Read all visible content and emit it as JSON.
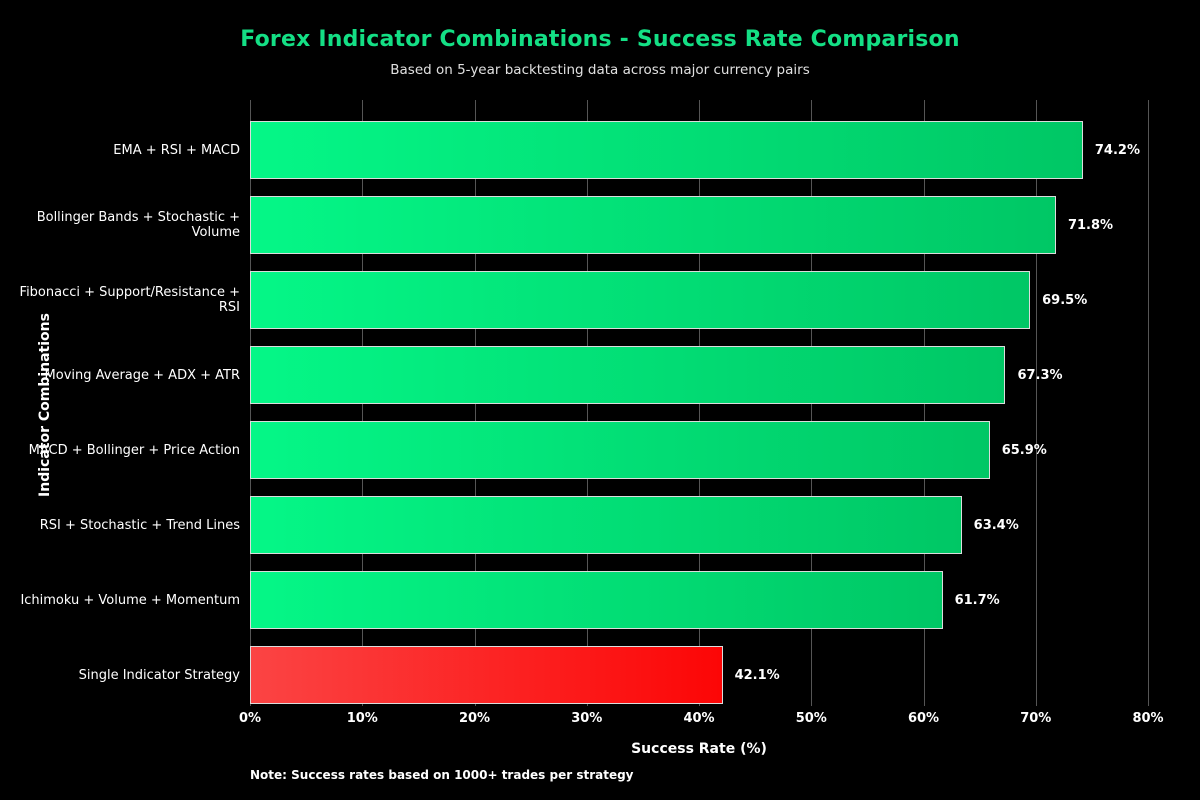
{
  "chart_data": {
    "type": "bar",
    "orientation": "horizontal",
    "title": "Forex Indicator Combinations - Success Rate Comparison",
    "subtitle": "Based on 5-year backtesting data across major currency pairs",
    "xlabel": "Success Rate (%)",
    "ylabel": "Indicator Combinations",
    "note": "Note: Success rates based on 1000+ trades per strategy",
    "categories": [
      "EMA + RSI + MACD",
      "Bollinger Bands + Stochastic + Volume",
      "Fibonacci + Support/Resistance + RSI",
      "Moving Average + ADX + ATR",
      "MACD + Bollinger + Price Action",
      "RSI + Stochastic + Trend Lines",
      "Ichimoku + Volume + Momentum",
      "Single Indicator Strategy"
    ],
    "values": [
      74.2,
      71.8,
      69.5,
      67.3,
      65.9,
      63.4,
      61.7,
      42.1
    ],
    "value_labels": [
      "74.2%",
      "71.8%",
      "69.5%",
      "67.3%",
      "65.9%",
      "63.4%",
      "61.7%",
      "42.1%"
    ],
    "bar_color_keys": [
      "green",
      "green",
      "green",
      "green",
      "green",
      "green",
      "green",
      "red"
    ],
    "x_ticks": [
      "0%",
      "10%",
      "20%",
      "30%",
      "40%",
      "50%",
      "60%",
      "70%",
      "80%"
    ],
    "xlim": [
      0,
      80
    ],
    "grid": true,
    "legend": "none",
    "colors": {
      "background": "#000000",
      "title": "#14DF85",
      "subtitle": "#E0E0E0",
      "text": "#FFFFFF",
      "grid": "#555555",
      "bar_border": "#DCDCDC",
      "green_gradient_start": "#05F787",
      "green_gradient_end": "#00C765",
      "red_gradient_start": "#FB4444",
      "red_gradient_end": "#FC0606"
    }
  }
}
